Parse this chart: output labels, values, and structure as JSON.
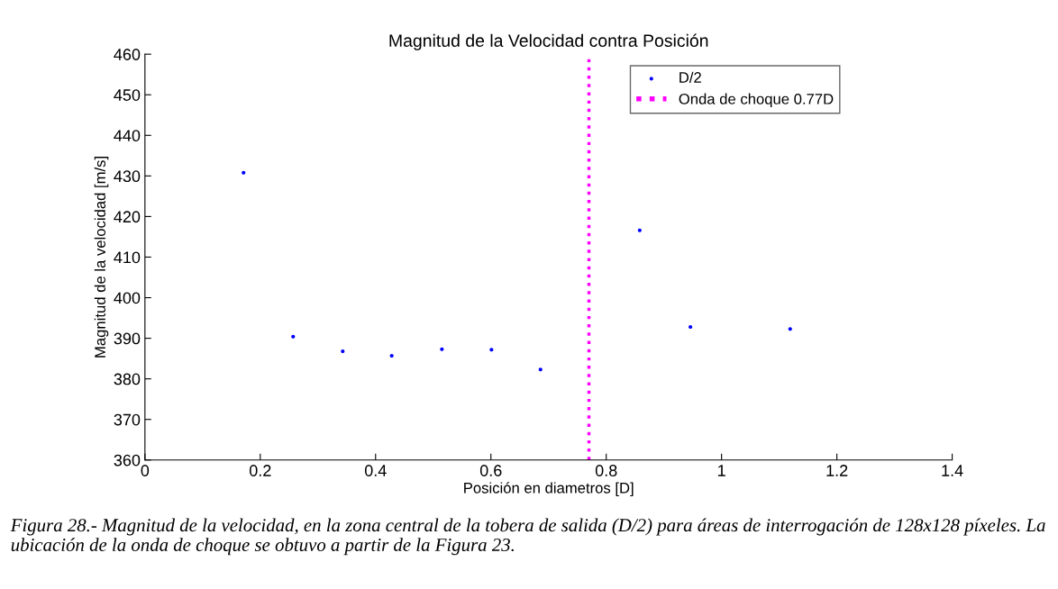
{
  "chart_data": {
    "type": "scatter",
    "title": "Magnitud de la Velocidad contra Posición",
    "xlabel": "Posición en diametros [D]",
    "ylabel": "Magnitud de la velocidad [m/s]",
    "x": [
      0.171,
      0.257,
      0.343,
      0.428,
      0.515,
      0.601,
      0.686,
      0.858,
      0.946,
      1.119
    ],
    "series": [
      {
        "name": "D/2",
        "color": "#0000ff",
        "marker": "circle",
        "values": [
          430.8,
          390.4,
          386.8,
          385.7,
          387.3,
          387.2,
          382.3,
          416.6,
          392.8,
          392.3
        ]
      },
      {
        "name": "Onda de choque 0.77D",
        "type": "line",
        "marker": "none",
        "color": "#ff00ff",
        "line_style": "dotted",
        "x": [
          0.77,
          0.77
        ],
        "values": [
          360,
          460
        ]
      }
    ],
    "xlim": [
      0,
      1.4
    ],
    "xticks": [
      0,
      0.2,
      0.4,
      0.6,
      0.8,
      1,
      1.2,
      1.4
    ],
    "ylim": [
      360,
      460
    ],
    "yticks": [
      360,
      370,
      380,
      390,
      400,
      410,
      420,
      430,
      440,
      450,
      460
    ],
    "grid": false,
    "legend": "top right",
    "annotations": [
      "Figura 28.- Magnitud de la velocidad, en la zona central de la tobera de salida (D/2) para áreas de interrogación de 128x128 píxeles. La ubicación de la onda de choque se obtuvo a partir de la Figura 23."
    ]
  }
}
